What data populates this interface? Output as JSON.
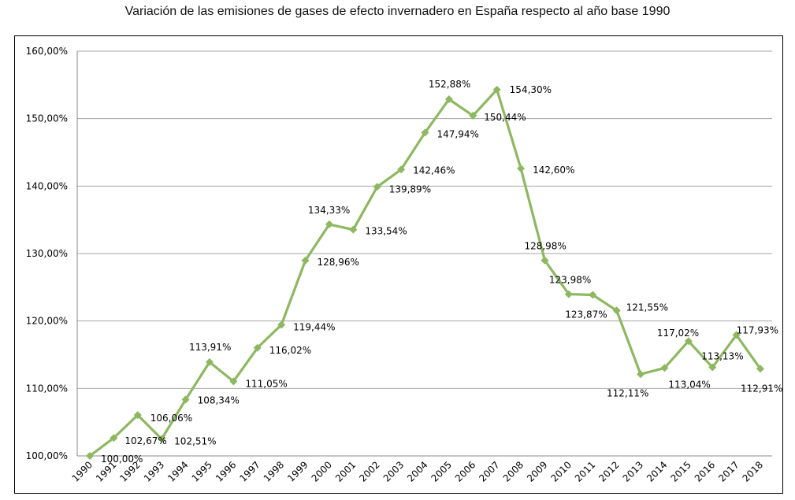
{
  "chart_data": {
    "type": "line",
    "title": "Variación de las emisiones de gases de efecto invernadero en España respecto al año base 1990",
    "xlabel": "",
    "ylabel": "",
    "ylim": [
      100,
      160
    ],
    "yticks": [
      "100,00%",
      "110,00%",
      "120,00%",
      "130,00%",
      "140,00%",
      "150,00%",
      "160,00%"
    ],
    "grid": true,
    "legend": "none",
    "line_color": "#8DB860",
    "marker": "diamond",
    "categories": [
      "1990",
      "1991",
      "1992",
      "1993",
      "1994",
      "1995",
      "1996",
      "1997",
      "1998",
      "1999",
      "2000",
      "2001",
      "2002",
      "2003",
      "2004",
      "2005",
      "2006",
      "2007",
      "2008",
      "2009",
      "2010",
      "2011",
      "2012",
      "2013",
      "2014",
      "2015",
      "2016",
      "2017",
      "2018"
    ],
    "values": [
      100.0,
      102.67,
      106.06,
      102.51,
      108.34,
      113.91,
      111.05,
      116.02,
      119.44,
      128.96,
      134.33,
      133.54,
      139.89,
      142.46,
      147.94,
      152.88,
      150.44,
      154.3,
      142.6,
      128.98,
      123.98,
      123.87,
      121.55,
      112.11,
      113.04,
      117.02,
      113.13,
      117.93,
      112.91
    ],
    "data_labels": [
      "100,00%",
      "102,67%",
      "106,06%",
      "102,51%",
      "108,34%",
      "113,91%",
      "111,05%",
      "116,02%",
      "119,44%",
      "128,96%",
      "134,33%",
      "133,54%",
      "139,89%",
      "142,46%",
      "147,94%",
      "152,88%",
      "150,44%",
      "154,30%",
      "142,60%",
      "128,98%",
      "123,98%",
      "123,87%",
      "121,55%",
      "112,11%",
      "113,04%",
      "117,02%",
      "113,13%",
      "117,93%",
      "112,91%"
    ]
  }
}
